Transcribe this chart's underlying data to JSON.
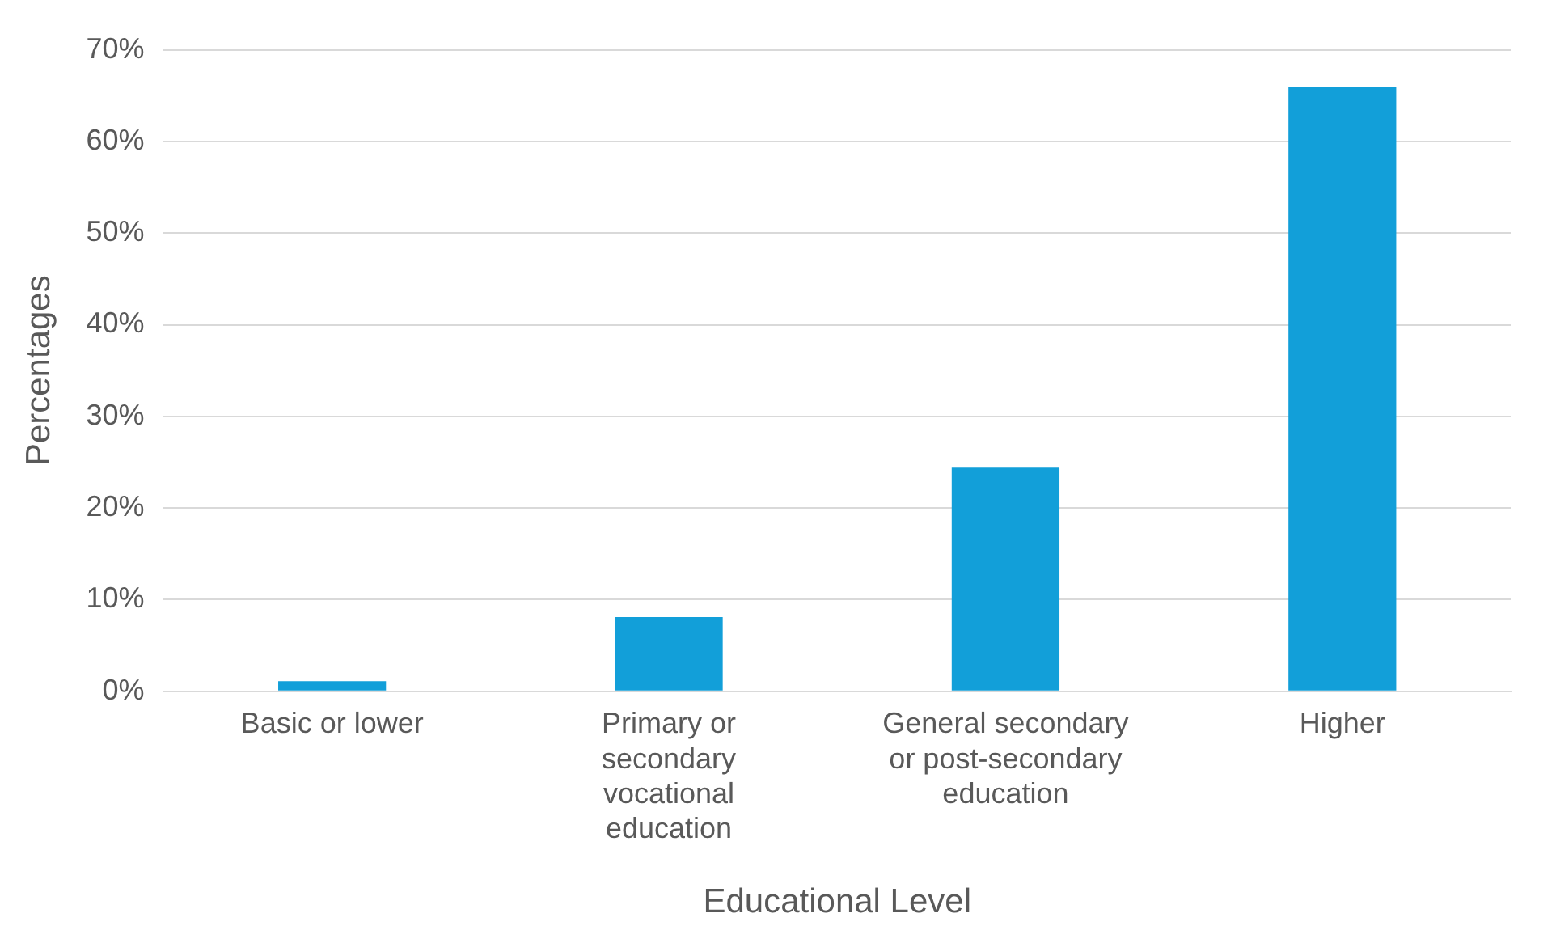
{
  "chart_data": {
    "type": "bar",
    "xlabel": "Educational Level",
    "ylabel": "Percentages",
    "categories": [
      "Basic or lower",
      "Primary or secondary vocational education",
      "General secondary or post-secondary education",
      "Higher"
    ],
    "values": [
      1.1,
      8.1,
      24.4,
      66.0
    ],
    "color": "#129fd9",
    "ylim": [
      0,
      70
    ],
    "yticks": [
      {
        "value": 0,
        "label": "0%"
      },
      {
        "value": 10,
        "label": "10%"
      },
      {
        "value": 20,
        "label": "20%"
      },
      {
        "value": 30,
        "label": "30%"
      },
      {
        "value": 40,
        "label": "40%"
      },
      {
        "value": 50,
        "label": "50%"
      },
      {
        "value": 60,
        "label": "60%"
      },
      {
        "value": 70,
        "label": "70%"
      }
    ],
    "grid": "y"
  }
}
